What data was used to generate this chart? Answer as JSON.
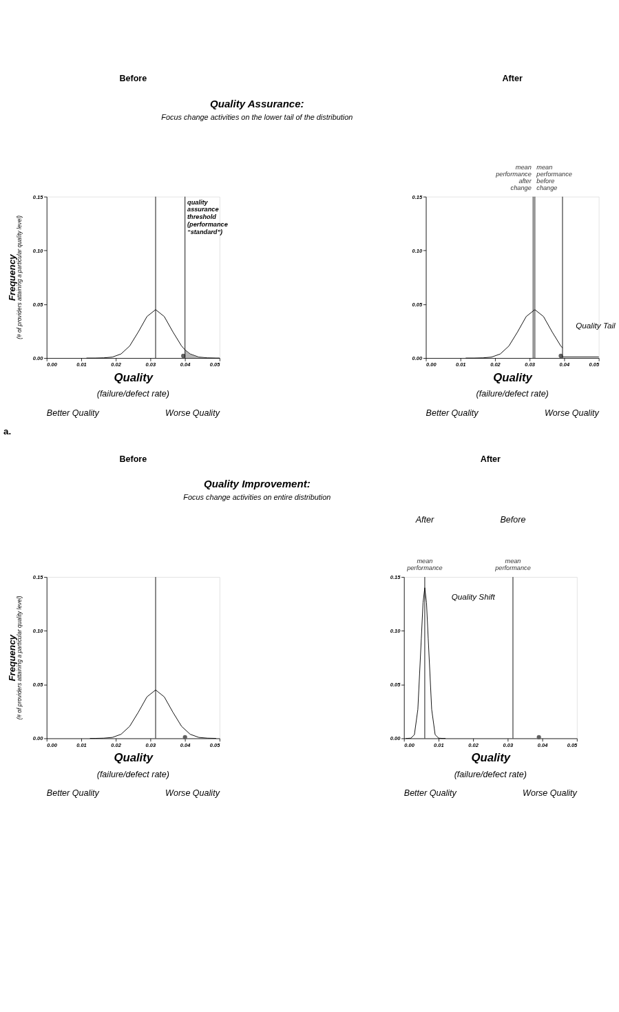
{
  "chart_data": [
    {
      "type": "line",
      "title": "Before",
      "xlabel": "Quality",
      "ylabel": "Frequency",
      "xlim": [
        0,
        0.05
      ],
      "ylim": [
        0,
        0.15
      ],
      "xticks": [
        {
          "value": 0,
          "label": "0.00"
        },
        {
          "value": 0.01,
          "label": "0.01"
        },
        {
          "value": 0.02,
          "label": "0.02"
        },
        {
          "value": 0.03,
          "label": "0.03"
        },
        {
          "value": 0.04,
          "label": "0.04"
        },
        {
          "value": 0.05,
          "label": "0.05"
        }
      ],
      "yticks": [
        {
          "value": 0,
          "label": "0.00"
        },
        {
          "value": 0.05,
          "label": "0.05"
        },
        {
          "value": 0.1,
          "label": "0.10"
        },
        {
          "value": 0.15,
          "label": "0.15"
        }
      ],
      "grid": false,
      "marker": "none",
      "series": [
        {
          "color": "#000000",
          "x": [
            0.0115,
            0.014,
            0.0165,
            0.019,
            0.0215,
            0.024,
            0.0265,
            0.029,
            0.0315,
            0.034,
            0.0365,
            0.039,
            0.04,
            0.0415,
            0.044,
            0.0465,
            0.049,
            0.05
          ],
          "values": [
            0,
            0,
            0.0002,
            0.0009,
            0.0038,
            0.0112,
            0.0243,
            0.0386,
            0.045,
            0.0386,
            0.0243,
            0.0112,
            0.0076,
            0.0038,
            0.0009,
            0.0002,
            0,
            0
          ]
        },
        {
          "type": "area",
          "color": "#808080",
          "x": [
            0.04,
            0.0415,
            0.044,
            0.0465,
            0.049,
            0.05
          ],
          "values": [
            0.0076,
            0.0038,
            0.0009,
            0.0002,
            0,
            0
          ]
        },
        {
          "type": "scatter",
          "color": "#606060",
          "x": [
            0.0395
          ],
          "values": [
            0.002
          ]
        }
      ],
      "ref_lines": [
        {
          "axis": "x",
          "value": 0.0315,
          "label": null
        },
        {
          "axis": "x",
          "value": 0.04,
          "label": "quality assurance threshold (performance “standard”)"
        }
      ],
      "annotations": [
        "Quality Assurance:",
        "Focus change activities on the lower tail of the distribution",
        "(# of providers attaining a particular quality level)",
        "(failure/defect rate)",
        "Better Quality",
        "Worse Quality",
        "a."
      ]
    },
    {
      "type": "line",
      "title": "After",
      "xlabel": "Quality",
      "xlim": [
        0,
        0.05
      ],
      "ylim": [
        0,
        0.15
      ],
      "xticks": [
        {
          "value": 0,
          "label": "0.00"
        },
        {
          "value": 0.01,
          "label": "0.01"
        },
        {
          "value": 0.02,
          "label": "0.02"
        },
        {
          "value": 0.03,
          "label": "0.03"
        },
        {
          "value": 0.04,
          "label": "0.04"
        },
        {
          "value": 0.05,
          "label": "0.05"
        }
      ],
      "yticks": [
        {
          "value": 0,
          "label": "0.00"
        },
        {
          "value": 0.05,
          "label": "0.05"
        },
        {
          "value": 0.1,
          "label": "0.10"
        },
        {
          "value": 0.15,
          "label": "0.15"
        }
      ],
      "grid": false,
      "marker": "none",
      "series": [
        {
          "color": "#000000",
          "x": [
            0.0115,
            0.014,
            0.0165,
            0.019,
            0.0215,
            0.024,
            0.0265,
            0.029,
            0.0315,
            0.034,
            0.0365,
            0.039,
            0.0395
          ],
          "values": [
            0,
            0,
            0.0002,
            0.0009,
            0.0038,
            0.0112,
            0.0243,
            0.0386,
            0.045,
            0.0386,
            0.0243,
            0.0112,
            0.0094
          ]
        },
        {
          "color": "#000000",
          "x": [
            0.0395,
            0.05
          ],
          "values": [
            0.001,
            0.001
          ]
        },
        {
          "type": "scatter",
          "color": "#606060",
          "x": [
            0.039
          ],
          "values": [
            0.002
          ]
        }
      ],
      "ref_lines": [
        {
          "axis": "x",
          "value": 0.031,
          "label": "mean performance after change"
        },
        {
          "axis": "x",
          "value": 0.0315,
          "label": "mean performance before change"
        },
        {
          "axis": "x",
          "value": 0.0395,
          "label": null
        }
      ],
      "annotations": [
        "(failure/defect rate)",
        "Better Quality",
        "Worse Quality",
        "Quality Tail"
      ]
    },
    {
      "type": "line",
      "title": "Before",
      "xlabel": "Quality",
      "ylabel": "Frequency",
      "xlim": [
        0,
        0.05
      ],
      "ylim": [
        0,
        0.15
      ],
      "xticks": [
        {
          "value": 0,
          "label": "0.00"
        },
        {
          "value": 0.01,
          "label": "0.01"
        },
        {
          "value": 0.02,
          "label": "0.02"
        },
        {
          "value": 0.03,
          "label": "0.03"
        },
        {
          "value": 0.04,
          "label": "0.04"
        },
        {
          "value": 0.05,
          "label": "0.05"
        }
      ],
      "yticks": [
        {
          "value": 0,
          "label": "0.00"
        },
        {
          "value": 0.05,
          "label": "0.05"
        },
        {
          "value": 0.1,
          "label": "0.10"
        },
        {
          "value": 0.15,
          "label": "0.15"
        }
      ],
      "grid": false,
      "marker": "none",
      "series": [
        {
          "color": "#000000",
          "x": [
            0.0125,
            0.014,
            0.0165,
            0.019,
            0.0215,
            0.024,
            0.0265,
            0.029,
            0.0315,
            0.034,
            0.0365,
            0.039,
            0.0415,
            0.044,
            0.0465,
            0.049
          ],
          "values": [
            0,
            0,
            0.0002,
            0.0009,
            0.0038,
            0.0112,
            0.0243,
            0.0386,
            0.045,
            0.0386,
            0.0243,
            0.0112,
            0.0038,
            0.0009,
            0.0002,
            0
          ]
        },
        {
          "type": "scatter",
          "color": "#606060",
          "x": [
            0.04
          ],
          "values": [
            0.001
          ]
        }
      ],
      "ref_lines": [
        {
          "axis": "x",
          "value": 0.0315,
          "label": null
        }
      ],
      "annotations": [
        "Quality Improvement:",
        "Focus change activities on entire distribution",
        "(# of providers attaining a particular quality level)",
        "(failure/defect rate)",
        "Better Quality",
        "Worse Quality"
      ]
    },
    {
      "type": "line",
      "title": "After",
      "xlabel": "Quality",
      "xlim": [
        0,
        0.05
      ],
      "ylim": [
        0,
        0.15
      ],
      "xticks": [
        {
          "value": 0,
          "label": "0.00"
        },
        {
          "value": 0.01,
          "label": "0.01"
        },
        {
          "value": 0.02,
          "label": "0.02"
        },
        {
          "value": 0.03,
          "label": "0.03"
        },
        {
          "value": 0.04,
          "label": "0.04"
        },
        {
          "value": 0.05,
          "label": "0.05"
        }
      ],
      "yticks": [
        {
          "value": 0,
          "label": "0.00"
        },
        {
          "value": 0.05,
          "label": "0.05"
        },
        {
          "value": 0.1,
          "label": "0.10"
        },
        {
          "value": 0.15,
          "label": "0.15"
        }
      ],
      "grid": false,
      "marker": "none",
      "series": [
        {
          "color": "#000000",
          "x": [
            0.0005,
            0.001,
            0.002,
            0.003,
            0.004,
            0.005,
            0.0055,
            0.006,
            0.0065,
            0.007,
            0.008,
            0.009,
            0.01,
            0.011,
            0.012
          ],
          "values": [
            0,
            0,
            0.0002,
            0.0034,
            0.0269,
            0.0926,
            0.126,
            0.14,
            0.126,
            0.0926,
            0.0269,
            0.0034,
            0.0002,
            0,
            0
          ]
        },
        {
          "type": "scatter",
          "color": "#606060",
          "x": [
            0.039
          ],
          "values": [
            0.001
          ]
        }
      ],
      "ref_lines": [
        {
          "axis": "x",
          "value": 0.006,
          "label": "mean performance"
        },
        {
          "axis": "x",
          "value": 0.0315,
          "label": "mean performance"
        }
      ],
      "annotations": [
        "After",
        "Before",
        "(failure/defect rate)",
        "Better Quality",
        "Worse Quality",
        "Quality Shift"
      ]
    }
  ]
}
